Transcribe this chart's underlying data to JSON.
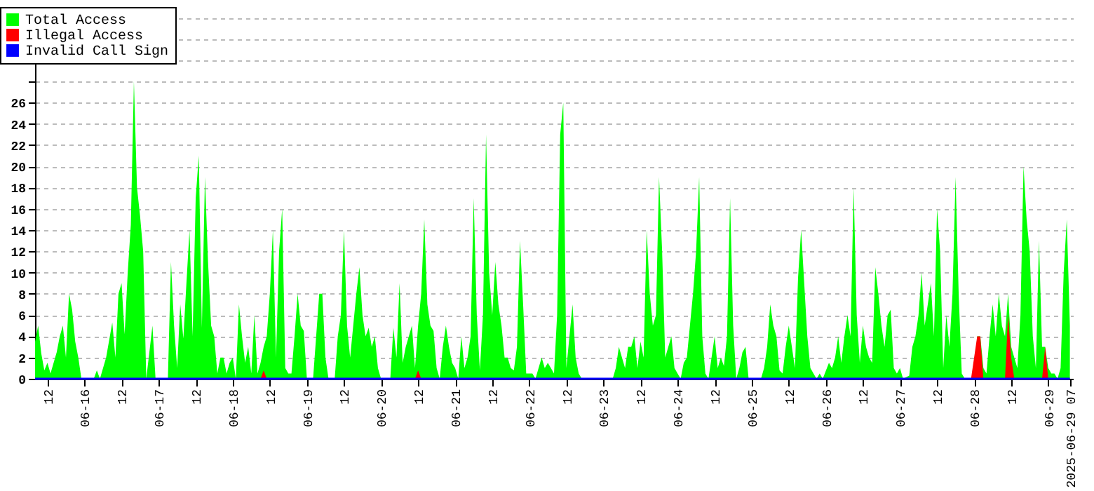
{
  "chart_data": {
    "type": "area",
    "legend": "top left",
    "grid": "y",
    "xlim": [
      "2025-06-15T08:00",
      "2025-06-29T08:00"
    ],
    "ylim": [
      0,
      35
    ],
    "yticks": [
      0,
      2,
      4,
      6,
      8,
      10,
      12,
      14,
      16,
      18,
      20,
      22,
      24,
      26,
      {
        "value": 28,
        "label": null
      },
      {
        "value": 30,
        "label": null
      },
      {
        "value": 32,
        "label": null
      },
      {
        "value": 34,
        "label": null
      }
    ],
    "xticks": [
      {
        "value": "2025-06-15T12:00",
        "label": "12"
      },
      {
        "value": "2025-06-16T00:00",
        "label": "06-16"
      },
      {
        "value": "2025-06-16T12:00",
        "label": "12"
      },
      {
        "value": "2025-06-17T00:00",
        "label": "06-17"
      },
      {
        "value": "2025-06-17T12:00",
        "label": "12"
      },
      {
        "value": "2025-06-18T00:00",
        "label": "06-18"
      },
      {
        "value": "2025-06-18T12:00",
        "label": "12"
      },
      {
        "value": "2025-06-19T00:00",
        "label": "06-19"
      },
      {
        "value": "2025-06-19T12:00",
        "label": "12"
      },
      {
        "value": "2025-06-20T00:00",
        "label": "06-20"
      },
      {
        "value": "2025-06-20T12:00",
        "label": "12"
      },
      {
        "value": "2025-06-21T00:00",
        "label": "06-21"
      },
      {
        "value": "2025-06-21T12:00",
        "label": "12"
      },
      {
        "value": "2025-06-22T00:00",
        "label": "06-22"
      },
      {
        "value": "2025-06-22T12:00",
        "label": "12"
      },
      {
        "value": "2025-06-23T00:00",
        "label": "06-23"
      },
      {
        "value": "2025-06-23T12:00",
        "label": "12"
      },
      {
        "value": "2025-06-24T00:00",
        "label": "06-24"
      },
      {
        "value": "2025-06-24T12:00",
        "label": "12"
      },
      {
        "value": "2025-06-25T00:00",
        "label": "06-25"
      },
      {
        "value": "2025-06-25T12:00",
        "label": "12"
      },
      {
        "value": "2025-06-26T00:00",
        "label": "06-26"
      },
      {
        "value": "2025-06-26T12:00",
        "label": "12"
      },
      {
        "value": "2025-06-27T00:00",
        "label": "06-27"
      },
      {
        "value": "2025-06-27T12:00",
        "label": "12"
      },
      {
        "value": "2025-06-28T00:00",
        "label": "06-28"
      },
      {
        "value": "2025-06-28T12:00",
        "label": "12"
      },
      {
        "value": "2025-06-29T00:00",
        "label": "06-29"
      },
      {
        "value": "2025-06-29T07:00",
        "label": "2025-06-29 07"
      }
    ],
    "series": [
      {
        "name": "Total Access",
        "color": "#00ff00",
        "x": [
          "2025-06-15T08:00",
          "2025-06-15T09:00",
          "2025-06-15T10:00",
          "2025-06-15T11:00",
          "2025-06-15T12:00",
          "2025-06-15T13:00",
          "2025-06-15T15:00",
          "2025-06-15T16:00",
          "2025-06-15T17:00",
          "2025-06-15T18:00",
          "2025-06-15T19:00",
          "2025-06-15T20:00",
          "2025-06-15T21:00",
          "2025-06-15T22:00",
          "2025-06-15T23:00",
          "2025-06-16T03:00",
          "2025-06-16T04:00",
          "2025-06-16T05:00",
          "2025-06-16T07:00",
          "2025-06-16T09:00",
          "2025-06-16T10:00",
          "2025-06-16T11:00",
          "2025-06-16T12:00",
          "2025-06-16T13:00",
          "2025-06-16T14:00",
          "2025-06-16T15:00",
          "2025-06-16T16:00",
          "2025-06-16T17:00",
          "2025-06-16T18:00",
          "2025-06-16T19:00",
          "2025-06-16T20:00",
          "2025-06-16T21:00",
          "2025-06-16T22:00",
          "2025-06-16T23:00",
          "2025-06-17T03:00",
          "2025-06-17T04:00",
          "2025-06-17T05:00",
          "2025-06-17T06:00",
          "2025-06-17T07:00",
          "2025-06-17T08:00",
          "2025-06-17T09:00",
          "2025-06-17T10:00",
          "2025-06-17T11:00",
          "2025-06-17T12:00",
          "2025-06-17T13:00",
          "2025-06-17T14:00",
          "2025-06-17T15:00",
          "2025-06-17T16:00",
          "2025-06-17T17:00",
          "2025-06-17T18:00",
          "2025-06-17T19:00",
          "2025-06-17T20:00",
          "2025-06-17T21:00",
          "2025-06-17T22:00",
          "2025-06-17T23:00",
          "2025-06-18T00:00",
          "2025-06-18T01:00",
          "2025-06-18T02:00",
          "2025-06-18T03:00",
          "2025-06-18T04:00",
          "2025-06-18T05:00",
          "2025-06-18T06:00",
          "2025-06-18T07:00",
          "2025-06-18T08:00",
          "2025-06-18T09:00",
          "2025-06-18T10:00",
          "2025-06-18T11:00",
          "2025-06-18T12:00",
          "2025-06-18T13:00",
          "2025-06-18T14:00",
          "2025-06-18T15:00",
          "2025-06-18T16:00",
          "2025-06-18T17:00",
          "2025-06-18T18:00",
          "2025-06-18T19:00",
          "2025-06-18T20:00",
          "2025-06-18T21:00",
          "2025-06-18T22:00",
          "2025-06-18T23:00",
          "2025-06-19T00:00",
          "2025-06-19T02:00",
          "2025-06-19T03:00",
          "2025-06-19T04:00",
          "2025-06-19T05:00",
          "2025-06-19T06:00",
          "2025-06-19T07:00",
          "2025-06-19T09:00",
          "2025-06-19T10:00",
          "2025-06-19T11:00",
          "2025-06-19T12:00",
          "2025-06-19T13:00",
          "2025-06-19T14:00",
          "2025-06-19T15:00",
          "2025-06-19T16:00",
          "2025-06-19T17:00",
          "2025-06-19T18:00",
          "2025-06-19T19:00",
          "2025-06-19T20:00",
          "2025-06-19T21:00",
          "2025-06-19T22:00",
          "2025-06-19T23:00",
          "2025-06-20T00:00",
          "2025-06-20T03:00",
          "2025-06-20T04:00",
          "2025-06-20T05:00",
          "2025-06-20T06:00",
          "2025-06-20T07:00",
          "2025-06-20T08:00",
          "2025-06-20T09:00",
          "2025-06-20T10:00",
          "2025-06-20T11:00",
          "2025-06-20T12:00",
          "2025-06-20T13:00",
          "2025-06-20T14:00",
          "2025-06-20T15:00",
          "2025-06-20T16:00",
          "2025-06-20T17:00",
          "2025-06-20T18:00",
          "2025-06-20T19:00",
          "2025-06-20T20:00",
          "2025-06-20T21:00",
          "2025-06-20T22:00",
          "2025-06-20T23:00",
          "2025-06-21T00:00",
          "2025-06-21T01:00",
          "2025-06-21T02:00",
          "2025-06-21T03:00",
          "2025-06-21T04:00",
          "2025-06-21T05:00",
          "2025-06-21T06:00",
          "2025-06-21T07:00",
          "2025-06-21T08:00",
          "2025-06-21T09:00",
          "2025-06-21T10:00",
          "2025-06-21T11:00",
          "2025-06-21T12:00",
          "2025-06-21T13:00",
          "2025-06-21T14:00",
          "2025-06-21T15:00",
          "2025-06-21T16:00",
          "2025-06-21T17:00",
          "2025-06-21T18:00",
          "2025-06-21T19:00",
          "2025-06-21T20:00",
          "2025-06-21T21:00",
          "2025-06-21T22:00",
          "2025-06-21T23:00",
          "2025-06-22T01:00",
          "2025-06-22T02:00",
          "2025-06-22T03:00",
          "2025-06-22T04:00",
          "2025-06-22T05:00",
          "2025-06-22T06:00",
          "2025-06-22T07:00",
          "2025-06-22T08:00",
          "2025-06-22T09:00",
          "2025-06-22T10:00",
          "2025-06-22T11:00",
          "2025-06-22T12:00",
          "2025-06-22T13:00",
          "2025-06-22T14:00",
          "2025-06-22T15:00",
          "2025-06-22T16:00",
          "2025-06-22T17:00",
          "2025-06-23T03:00",
          "2025-06-23T04:00",
          "2025-06-23T05:00",
          "2025-06-23T06:00",
          "2025-06-23T07:00",
          "2025-06-23T08:00",
          "2025-06-23T09:00",
          "2025-06-23T10:00",
          "2025-06-23T11:00",
          "2025-06-23T12:00",
          "2025-06-23T13:00",
          "2025-06-23T14:00",
          "2025-06-23T15:00",
          "2025-06-23T16:00",
          "2025-06-23T17:00",
          "2025-06-23T18:00",
          "2025-06-23T19:00",
          "2025-06-23T20:00",
          "2025-06-23T21:00",
          "2025-06-23T22:00",
          "2025-06-23T23:00",
          "2025-06-24T00:00",
          "2025-06-24T01:00",
          "2025-06-24T02:00",
          "2025-06-24T03:00",
          "2025-06-24T04:00",
          "2025-06-24T05:00",
          "2025-06-24T06:00",
          "2025-06-24T07:00",
          "2025-06-24T08:00",
          "2025-06-24T09:00",
          "2025-06-24T10:00",
          "2025-06-24T11:00",
          "2025-06-24T12:00",
          "2025-06-24T13:00",
          "2025-06-24T14:00",
          "2025-06-24T15:00",
          "2025-06-24T16:00",
          "2025-06-24T17:00",
          "2025-06-24T18:00",
          "2025-06-24T19:00",
          "2025-06-24T20:00",
          "2025-06-24T21:00",
          "2025-06-24T22:00",
          "2025-06-24T23:00",
          "2025-06-25T03:00",
          "2025-06-25T04:00",
          "2025-06-25T05:00",
          "2025-06-25T06:00",
          "2025-06-25T07:00",
          "2025-06-25T08:00",
          "2025-06-25T09:00",
          "2025-06-25T10:00",
          "2025-06-25T11:00",
          "2025-06-25T12:00",
          "2025-06-25T13:00",
          "2025-06-25T14:00",
          "2025-06-25T15:00",
          "2025-06-25T16:00",
          "2025-06-25T17:00",
          "2025-06-25T18:00",
          "2025-06-25T19:00",
          "2025-06-25T20:00",
          "2025-06-25T21:00",
          "2025-06-25T22:00",
          "2025-06-25T23:00",
          "2025-06-26T01:00",
          "2025-06-26T02:00",
          "2025-06-26T03:00",
          "2025-06-26T04:00",
          "2025-06-26T05:00",
          "2025-06-26T06:00",
          "2025-06-26T07:00",
          "2025-06-26T08:00",
          "2025-06-26T09:00",
          "2025-06-26T10:00",
          "2025-06-26T11:00",
          "2025-06-26T12:00",
          "2025-06-26T13:00",
          "2025-06-26T14:00",
          "2025-06-26T15:00",
          "2025-06-26T16:00",
          "2025-06-26T17:00",
          "2025-06-26T18:00",
          "2025-06-26T19:00",
          "2025-06-26T20:00",
          "2025-06-26T21:00",
          "2025-06-26T22:00",
          "2025-06-26T23:00",
          "2025-06-27T00:00",
          "2025-06-27T01:00",
          "2025-06-27T03:00",
          "2025-06-27T04:00",
          "2025-06-27T05:00",
          "2025-06-27T06:00",
          "2025-06-27T07:00",
          "2025-06-27T08:00",
          "2025-06-27T09:00",
          "2025-06-27T10:00",
          "2025-06-27T11:00",
          "2025-06-27T12:00",
          "2025-06-27T13:00",
          "2025-06-27T14:00",
          "2025-06-27T15:00",
          "2025-06-27T16:00",
          "2025-06-27T17:00",
          "2025-06-27T18:00",
          "2025-06-27T19:00",
          "2025-06-27T20:00",
          "2025-06-27T21:00",
          "2025-06-28T00:00",
          "2025-06-28T01:00",
          "2025-06-28T02:00",
          "2025-06-28T03:00",
          "2025-06-28T04:00",
          "2025-06-28T05:00",
          "2025-06-28T06:00",
          "2025-06-28T07:00",
          "2025-06-28T08:00",
          "2025-06-28T09:00",
          "2025-06-28T10:00",
          "2025-06-28T11:00",
          "2025-06-28T12:00",
          "2025-06-28T13:00",
          "2025-06-28T14:00",
          "2025-06-28T15:00",
          "2025-06-28T16:00",
          "2025-06-28T17:00",
          "2025-06-28T18:00",
          "2025-06-28T19:00",
          "2025-06-28T20:00",
          "2025-06-28T21:00",
          "2025-06-28T22:00",
          "2025-06-28T23:00",
          "2025-06-29T00:00",
          "2025-06-29T01:00",
          "2025-06-29T02:00",
          "2025-06-29T03:00",
          "2025-06-29T04:00",
          "2025-06-29T05:00",
          "2025-06-29T06:00",
          "2025-06-29T07:00"
        ],
        "values": [
          3.5,
          5,
          2.4,
          0.8,
          1.5,
          0.5,
          2.5,
          4,
          5,
          2,
          8,
          6.5,
          3.5,
          2,
          0,
          0,
          0.8,
          0,
          2,
          5.3,
          2,
          8,
          9,
          4.2,
          10,
          14.5,
          28,
          18,
          15.3,
          12,
          0,
          2.5,
          5,
          0,
          0,
          11,
          5,
          1,
          7,
          3.8,
          9,
          14,
          4,
          17,
          21,
          4.8,
          19,
          11,
          5,
          4,
          0.5,
          2,
          2,
          0.5,
          1.5,
          2,
          0,
          7,
          4,
          1.5,
          3,
          0.5,
          6,
          0.5,
          1.5,
          3,
          4,
          8,
          14,
          2,
          12,
          16,
          1,
          0.5,
          0.5,
          4,
          8,
          5,
          4.5,
          0,
          0,
          4,
          8,
          8,
          2,
          0,
          0,
          4,
          6,
          14,
          5,
          2,
          5,
          8,
          10.5,
          6,
          4,
          4.8,
          3,
          4,
          1,
          0,
          0,
          4.8,
          2,
          9,
          1.5,
          3,
          4,
          5,
          1,
          5,
          8,
          15,
          7,
          5,
          4.5,
          1,
          0,
          3,
          5,
          3,
          1.5,
          1,
          0,
          4,
          1,
          2,
          4,
          17,
          6,
          0.8,
          6,
          23,
          10,
          6,
          11,
          7,
          5,
          2,
          2,
          1,
          0.8,
          3,
          13,
          7,
          0.5,
          0.5,
          0,
          1,
          2,
          1,
          1.5,
          1,
          0.5,
          6,
          23,
          26,
          1,
          4,
          7,
          2,
          0.5,
          0,
          0,
          1,
          3,
          2,
          1,
          3,
          3,
          4,
          1,
          3.5,
          2,
          14,
          8,
          5,
          6,
          19,
          12,
          2,
          3,
          4,
          1,
          0.5,
          0,
          1.5,
          2,
          5,
          8,
          12,
          19,
          4,
          0.5,
          0,
          2,
          4,
          1,
          2,
          1.2,
          4,
          17,
          5,
          0,
          1,
          2.5,
          3,
          0,
          0,
          1,
          3,
          7,
          5,
          4,
          0.8,
          0.5,
          3,
          5,
          3,
          1,
          9.5,
          14,
          9,
          4,
          1,
          0.5,
          0,
          0.5,
          0,
          1.5,
          1,
          2,
          4,
          1.5,
          4,
          6,
          4,
          18,
          6,
          1.5,
          5,
          3,
          2,
          1.5,
          10.5,
          8,
          5,
          3,
          6,
          6.5,
          1,
          0.5,
          1,
          0,
          0.3,
          3,
          4,
          6,
          10,
          5,
          7,
          9,
          4,
          16,
          12,
          1,
          6,
          3,
          8,
          19,
          8,
          0.5,
          0,
          0,
          4,
          4,
          1,
          0.5,
          4,
          7,
          4,
          8,
          5,
          4,
          8,
          3,
          2,
          1,
          6,
          20,
          15,
          12,
          4,
          1,
          13,
          3,
          3,
          1,
          0.5,
          0.5,
          0,
          1,
          10,
          15,
          5
        ]
      },
      {
        "name": "Illegal Access",
        "color": "#ff0000",
        "x": [
          "2025-06-15T08:00",
          "2025-06-18T09:00",
          "2025-06-18T10:00",
          "2025-06-18T11:00",
          "2025-06-20T11:00",
          "2025-06-20T12:00",
          "2025-06-20T13:00",
          "2025-06-27T23:00",
          "2025-06-28T00:00",
          "2025-06-28T01:00",
          "2025-06-28T02:00",
          "2025-06-28T03:00",
          "2025-06-28T10:00",
          "2025-06-28T11:00",
          "2025-06-28T12:00",
          "2025-06-28T13:00",
          "2025-06-28T22:00",
          "2025-06-28T23:00",
          "2025-06-29T00:00",
          "2025-06-29T07:00"
        ],
        "values": [
          0,
          0,
          0.8,
          0,
          0,
          0.8,
          0,
          0,
          2,
          4,
          4,
          0,
          0,
          6,
          2,
          0,
          0,
          3,
          0,
          0
        ]
      },
      {
        "name": "Invalid Call Sign",
        "color": "#0000ff",
        "type": "line",
        "x": [
          "2025-06-15T08:00",
          "2025-06-29T07:00"
        ],
        "values": [
          0,
          0
        ]
      }
    ]
  }
}
